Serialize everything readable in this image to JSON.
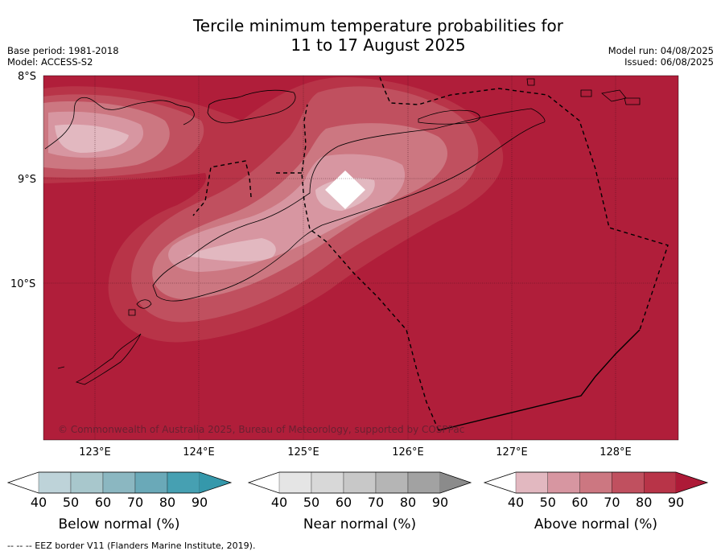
{
  "title": {
    "line1": "Tercile minimum temperature probabilities for",
    "line2": "11 to 17 August 2025"
  },
  "meta_left": {
    "base_period": "Base period: 1981-2018",
    "model": "Model: ACCESS-S2"
  },
  "meta_right": {
    "model_run": "Model run: 04/08/2025",
    "issued": "Issued: 06/08/2025"
  },
  "map": {
    "lat_labels": [
      "8°S",
      "9°S",
      "10°S"
    ],
    "lon_labels": [
      "123°E",
      "124°E",
      "125°E",
      "126°E",
      "127°E",
      "128°E"
    ],
    "copyright": "© Commonwealth of Australia 2025, Bureau of Meteorology, supported by COSPPac",
    "background_color": "#b01e3a",
    "field_category": "Above normal",
    "dominant_probability_band": "90"
  },
  "legends": [
    {
      "label": "Below normal (%)",
      "ticks": [
        "40",
        "50",
        "60",
        "70",
        "80",
        "90"
      ],
      "colors": [
        "#bed3d9",
        "#a8c7cc",
        "#8bb7c1",
        "#6aa9b8",
        "#46a0b2",
        "#3598ab"
      ]
    },
    {
      "label": "Near normal (%)",
      "ticks": [
        "40",
        "50",
        "60",
        "70",
        "80",
        "90"
      ],
      "colors": [
        "#e5e5e5",
        "#d8d8d8",
        "#c8c8c8",
        "#b5b5b5",
        "#a2a2a2",
        "#8b8b8b"
      ]
    },
    {
      "label": "Above normal (%)",
      "ticks": [
        "40",
        "50",
        "60",
        "70",
        "80",
        "90"
      ],
      "colors": [
        "#e2b8c0",
        "#d796a1",
        "#cc7781",
        "#c0505f",
        "#b83448",
        "#ad1a37"
      ]
    }
  ],
  "footer": "--  --  -- EEZ border V11 (Flanders Marine Institute, 2019)."
}
